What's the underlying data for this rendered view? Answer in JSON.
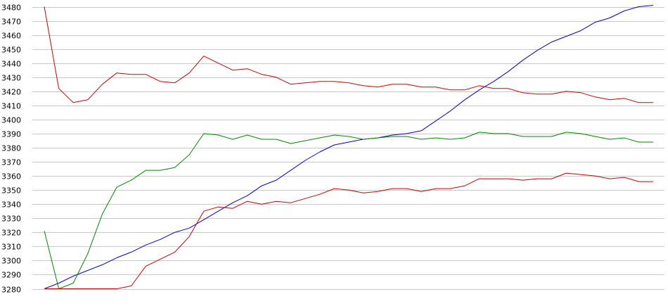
{
  "chart_data": {
    "type": "line",
    "title": "",
    "xlabel": "",
    "ylabel": "",
    "ylim": [
      3280,
      3480
    ],
    "ytick_step": 10,
    "grid": true,
    "legend": "none",
    "x": [
      0,
      1,
      2,
      3,
      4,
      5,
      6,
      7,
      8,
      9,
      10,
      11,
      12,
      13,
      14,
      15,
      16,
      17,
      18,
      19,
      20,
      21,
      22,
      23,
      24,
      25,
      26,
      27,
      28,
      29,
      30,
      31,
      32,
      33,
      34,
      35,
      36,
      37,
      38,
      39,
      40,
      41,
      42
    ],
    "series": [
      {
        "color": "#0000cc",
        "values": [
          3280,
          3284,
          3289,
          3293,
          3297,
          3302,
          3306,
          3311,
          3315,
          3320,
          3323,
          3329,
          3335,
          3341,
          3346,
          3353,
          3357,
          3364,
          3371,
          3377,
          3382,
          3384,
          3386,
          3387,
          3389,
          3390,
          3392,
          3399,
          3406,
          3414,
          3421,
          3427,
          3434,
          3442,
          3449,
          3455,
          3459,
          3463,
          3469,
          3472,
          3477,
          3480,
          3481
        ]
      },
      {
        "color": "#cc0000",
        "values": [
          3480,
          3422,
          3412,
          3414,
          3425,
          3433,
          3432,
          3432,
          3427,
          3426,
          3433,
          3445,
          3440,
          3435,
          3436,
          3432,
          3430,
          3425,
          3426,
          3427,
          3427,
          3426,
          3424,
          3423,
          3425,
          3425,
          3423,
          3423,
          3421,
          3421,
          3424,
          3422,
          3422,
          3419,
          3418,
          3418,
          3420,
          3419,
          3416,
          3414,
          3415,
          3412,
          3412
        ]
      },
      {
        "color": "#008800",
        "values": [
          3321,
          3280,
          3284,
          3305,
          3333,
          3352,
          3357,
          3364,
          3364,
          3366,
          3375,
          3390,
          3389,
          3386,
          3389,
          3386,
          3386,
          3383,
          3385,
          3387,
          3389,
          3388,
          3386,
          3387,
          3388,
          3388,
          3386,
          3387,
          3386,
          3387,
          3391,
          3390,
          3390,
          3388,
          3388,
          3388,
          3391,
          3390,
          3388,
          3386,
          3387,
          3384,
          3384
        ]
      },
      {
        "color": "#cc0000",
        "values": [
          3280,
          3280,
          3280,
          3280,
          3280,
          3280,
          3282,
          3296,
          3301,
          3306,
          3317,
          3335,
          3338,
          3337,
          3342,
          3340,
          3342,
          3341,
          3344,
          3347,
          3351,
          3350,
          3348,
          3349,
          3351,
          3351,
          3349,
          3351,
          3351,
          3353,
          3358,
          3358,
          3358,
          3357,
          3358,
          3358,
          3362,
          3361,
          3360,
          3358,
          3359,
          3356,
          3356
        ]
      }
    ],
    "yticks": [
      "3280",
      "3290",
      "3300",
      "3310",
      "3320",
      "3330",
      "3340",
      "3350",
      "3360",
      "3370",
      "3380",
      "3390",
      "3400",
      "3410",
      "3420",
      "3430",
      "3440",
      "3450",
      "3460",
      "3470",
      "3480"
    ]
  }
}
